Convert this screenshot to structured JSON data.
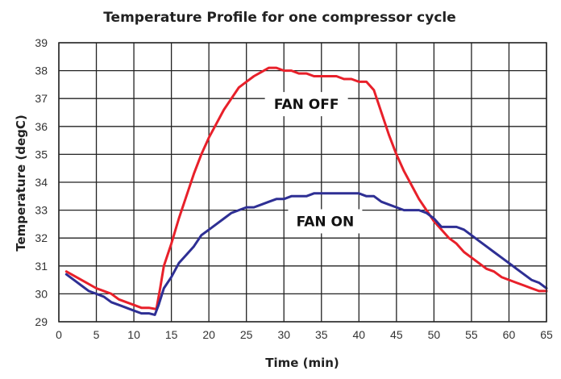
{
  "chart_data": {
    "type": "line",
    "title": "Temperature Profile for one compressor cycle",
    "xlabel": "Time (min)",
    "ylabel": "Temperature (degC)",
    "xlim": [
      0,
      65
    ],
    "ylim": [
      29,
      39
    ],
    "xticks": [
      0,
      5,
      10,
      15,
      20,
      25,
      30,
      35,
      40,
      45,
      50,
      55,
      60,
      65
    ],
    "yticks": [
      29,
      30,
      31,
      32,
      33,
      34,
      35,
      36,
      37,
      38,
      39
    ],
    "grid": true,
    "legend": "none",
    "annotations": [
      {
        "text": "FAN OFF",
        "x": 33,
        "y": 36.8
      },
      {
        "text": "FAN ON",
        "x": 35.5,
        "y": 32.6
      }
    ],
    "series": [
      {
        "color": "#e8202a",
        "points": [
          [
            1,
            30.8
          ],
          [
            3,
            30.5
          ],
          [
            5,
            30.2
          ],
          [
            7,
            30.0
          ],
          [
            8,
            29.8
          ],
          [
            10,
            29.6
          ],
          [
            11,
            29.5
          ],
          [
            12,
            29.5
          ],
          [
            13,
            29.45
          ],
          [
            13.5,
            30.2
          ],
          [
            14,
            31.0
          ],
          [
            15,
            31.8
          ],
          [
            16,
            32.7
          ],
          [
            17,
            33.5
          ],
          [
            18,
            34.3
          ],
          [
            19,
            35.0
          ],
          [
            20,
            35.6
          ],
          [
            21,
            36.1
          ],
          [
            22,
            36.6
          ],
          [
            23,
            37.0
          ],
          [
            24,
            37.4
          ],
          [
            25,
            37.6
          ],
          [
            26,
            37.8
          ],
          [
            27,
            37.95
          ],
          [
            28,
            38.1
          ],
          [
            29,
            38.1
          ],
          [
            30,
            38.0
          ],
          [
            31,
            38.0
          ],
          [
            32,
            37.9
          ],
          [
            33,
            37.9
          ],
          [
            34,
            37.8
          ],
          [
            35,
            37.8
          ],
          [
            36,
            37.8
          ],
          [
            37,
            37.8
          ],
          [
            38,
            37.7
          ],
          [
            39,
            37.7
          ],
          [
            40,
            37.6
          ],
          [
            41,
            37.6
          ],
          [
            42,
            37.3
          ],
          [
            43,
            36.5
          ],
          [
            44,
            35.7
          ],
          [
            45,
            35.0
          ],
          [
            46,
            34.4
          ],
          [
            47,
            33.9
          ],
          [
            48,
            33.4
          ],
          [
            49,
            33.0
          ],
          [
            50,
            32.6
          ],
          [
            51,
            32.3
          ],
          [
            52,
            32.0
          ],
          [
            53,
            31.8
          ],
          [
            54,
            31.5
          ],
          [
            55,
            31.3
          ],
          [
            56,
            31.1
          ],
          [
            57,
            30.9
          ],
          [
            58,
            30.8
          ],
          [
            59,
            30.6
          ],
          [
            60,
            30.5
          ],
          [
            61,
            30.4
          ],
          [
            62,
            30.3
          ],
          [
            63,
            30.2
          ],
          [
            64,
            30.1
          ],
          [
            65,
            30.1
          ]
        ]
      },
      {
        "color": "#2e2f94",
        "points": [
          [
            1,
            30.7
          ],
          [
            2,
            30.5
          ],
          [
            3,
            30.3
          ],
          [
            4,
            30.1
          ],
          [
            5,
            30.0
          ],
          [
            6,
            29.9
          ],
          [
            7,
            29.7
          ],
          [
            8,
            29.6
          ],
          [
            9,
            29.5
          ],
          [
            10,
            29.4
          ],
          [
            11,
            29.3
          ],
          [
            12,
            29.3
          ],
          [
            12.8,
            29.25
          ],
          [
            13.3,
            29.6
          ],
          [
            14,
            30.2
          ],
          [
            15,
            30.6
          ],
          [
            16,
            31.1
          ],
          [
            17,
            31.4
          ],
          [
            18,
            31.7
          ],
          [
            19,
            32.1
          ],
          [
            20,
            32.3
          ],
          [
            21,
            32.5
          ],
          [
            22,
            32.7
          ],
          [
            23,
            32.9
          ],
          [
            24,
            33.0
          ],
          [
            25,
            33.1
          ],
          [
            26,
            33.1
          ],
          [
            27,
            33.2
          ],
          [
            28,
            33.3
          ],
          [
            29,
            33.4
          ],
          [
            30,
            33.4
          ],
          [
            31,
            33.5
          ],
          [
            32,
            33.5
          ],
          [
            33,
            33.5
          ],
          [
            34,
            33.6
          ],
          [
            35,
            33.6
          ],
          [
            36,
            33.6
          ],
          [
            37,
            33.6
          ],
          [
            38,
            33.6
          ],
          [
            39,
            33.6
          ],
          [
            40,
            33.6
          ],
          [
            41,
            33.5
          ],
          [
            42,
            33.5
          ],
          [
            43,
            33.3
          ],
          [
            44,
            33.2
          ],
          [
            45,
            33.1
          ],
          [
            46,
            33.0
          ],
          [
            47,
            33.0
          ],
          [
            48,
            33.0
          ],
          [
            49,
            32.9
          ],
          [
            50,
            32.7
          ],
          [
            51,
            32.4
          ],
          [
            52,
            32.4
          ],
          [
            53,
            32.4
          ],
          [
            54,
            32.3
          ],
          [
            55,
            32.1
          ],
          [
            56,
            31.9
          ],
          [
            57,
            31.7
          ],
          [
            58,
            31.5
          ],
          [
            59,
            31.3
          ],
          [
            60,
            31.1
          ],
          [
            61,
            30.9
          ],
          [
            62,
            30.7
          ],
          [
            63,
            30.5
          ],
          [
            64,
            30.4
          ],
          [
            65,
            30.2
          ]
        ]
      }
    ]
  }
}
